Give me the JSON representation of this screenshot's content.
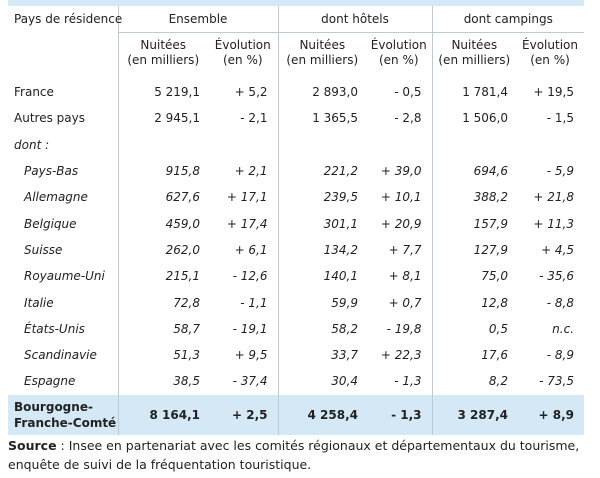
{
  "header": {
    "country_col": "Pays de résidence",
    "groups": [
      "Ensemble",
      "dont hôtels",
      "dont campings"
    ],
    "sub_nights": "Nuitées",
    "sub_nights_unit": "(en milliers)",
    "sub_evol": "Évolution",
    "sub_evol_unit": "(en %)"
  },
  "rows": [
    {
      "label": "France",
      "style": "normal",
      "v": [
        "5 219,1",
        "+ 5,2",
        "2 893,0",
        "- 0,5",
        "1 781,4",
        "+ 19,5"
      ]
    },
    {
      "label": "Autres pays",
      "style": "normal",
      "v": [
        "2 945,1",
        "- 2,1",
        "1 365,5",
        "- 2,8",
        "1 506,0",
        "- 1,5"
      ]
    },
    {
      "label": "dont :",
      "style": "italic",
      "v": [
        "",
        "",
        "",
        "",
        "",
        ""
      ]
    },
    {
      "label": "Pays-Bas",
      "style": "sub",
      "v": [
        "915,8",
        "+ 2,1",
        "221,2",
        "+ 39,0",
        "694,6",
        "- 5,9"
      ]
    },
    {
      "label": "Allemagne",
      "style": "sub",
      "v": [
        "627,6",
        "+ 17,1",
        "239,5",
        "+ 10,1",
        "388,2",
        "+ 21,8"
      ]
    },
    {
      "label": "Belgique",
      "style": "sub",
      "v": [
        "459,0",
        "+ 17,4",
        "301,1",
        "+ 20,9",
        "157,9",
        "+ 11,3"
      ]
    },
    {
      "label": "Suisse",
      "style": "sub",
      "v": [
        "262,0",
        "+ 6,1",
        "134,2",
        "+ 7,7",
        "127,9",
        "+ 4,5"
      ]
    },
    {
      "label": "Royaume-Uni",
      "style": "sub",
      "v": [
        "215,1",
        "- 12,6",
        "140,1",
        "+ 8,1",
        "75,0",
        "- 35,6"
      ]
    },
    {
      "label": "Italie",
      "style": "sub",
      "v": [
        "72,8",
        "- 1,1",
        "59,9",
        "+ 0,7",
        "12,8",
        "- 8,8"
      ]
    },
    {
      "label": "États-Unis",
      "style": "sub",
      "v": [
        "58,7",
        "- 19,1",
        "58,2",
        "- 19,8",
        "0,5",
        "n.c."
      ]
    },
    {
      "label": "Scandinavie",
      "style": "sub",
      "v": [
        "51,3",
        "+ 9,5",
        "33,7",
        "+ 22,3",
        "17,6",
        "- 8,9"
      ]
    },
    {
      "label": "Espagne",
      "style": "sub",
      "v": [
        "38,5",
        "- 37,4",
        "30,4",
        "- 1,3",
        "8,2",
        "- 73,5"
      ]
    }
  ],
  "total": {
    "label_line1": "Bourgogne-",
    "label_line2": "Franche-Comté",
    "v": [
      "8 164,1",
      "+ 2,5",
      "4 258,4",
      "- 1,3",
      "3 287,4",
      "+ 8,9"
    ]
  },
  "source": {
    "label": "Source",
    "text": " : Insee en partenariat avec les comités régionaux et départementaux du tourisme, enquête de suivi de la fréquentation touristique."
  }
}
